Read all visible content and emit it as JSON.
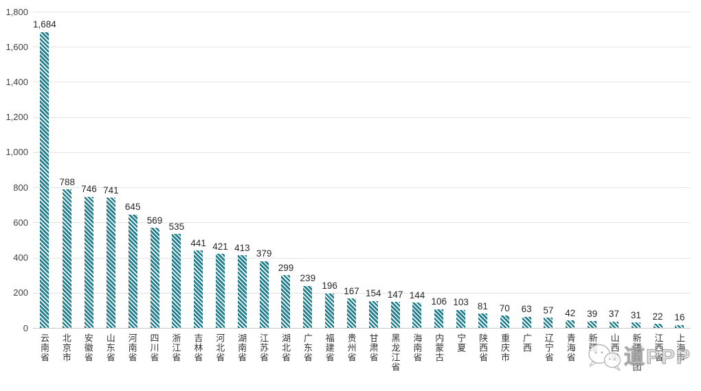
{
  "chart_data": {
    "type": "bar",
    "title": "",
    "xlabel": "",
    "ylabel": "",
    "categories": [
      "云南省",
      "北京市",
      "安徽省",
      "山东省",
      "河南省",
      "四川省",
      "浙江省",
      "吉林省",
      "河北省",
      "湖南省",
      "江苏省",
      "湖北省",
      "广东省",
      "福建省",
      "贵州省",
      "甘肃省",
      "黑龙江省",
      "海南省",
      "内蒙古",
      "宁夏",
      "陕西省",
      "重庆市",
      "广西",
      "辽宁省",
      "青海省",
      "新疆",
      "山西省",
      "新疆兵团",
      "江西省",
      "上海市"
    ],
    "values": [
      1684,
      788,
      746,
      741,
      645,
      569,
      535,
      441,
      421,
      413,
      379,
      299,
      239,
      196,
      167,
      154,
      147,
      144,
      106,
      103,
      81,
      70,
      63,
      57,
      42,
      39,
      37,
      31,
      22,
      16
    ],
    "value_labels": [
      "1,684",
      "788",
      "746",
      "741",
      "645",
      "569",
      "535",
      "441",
      "421",
      "413",
      "379",
      "299",
      "239",
      "196",
      "167",
      "154",
      "147",
      "144",
      "106",
      "103",
      "81",
      "70",
      "63",
      "57",
      "42",
      "39",
      "37",
      "31",
      "22",
      "16"
    ],
    "ylim": [
      0,
      1800
    ],
    "ytick_step": 200,
    "ytick_labels": [
      "0",
      "200",
      "400",
      "600",
      "800",
      "1,000",
      "1,200",
      "1,400",
      "1,600",
      "1,800"
    ],
    "grid": true,
    "legend_position": "none",
    "bar_color": "#1e7d8c",
    "bar_stripe_color": "#ffffff",
    "bar_pattern": "diagonal-hatch",
    "gridline_color": "#e4e4e4"
  },
  "watermark": {
    "text": "道PPP",
    "icon": "wechat-bubbles-icon",
    "color": "#b5b5b5"
  }
}
